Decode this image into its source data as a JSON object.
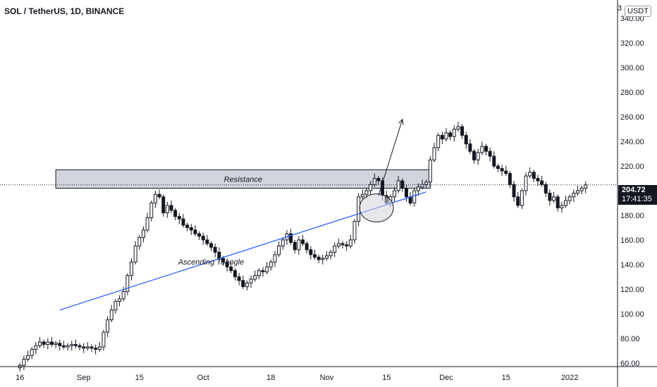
{
  "header": {
    "symbol_title": "SOL / TetherUS, 1D, BINANCE",
    "axis_cut_label": "3",
    "currency": "USDT"
  },
  "price_tag": {
    "last_price": "204.72",
    "countdown": "17:41:35"
  },
  "colors": {
    "candle_up": "#ffffff",
    "candle_down": "#131722",
    "trendline": "#2962ff",
    "resistance_fill": "#d1d4dc",
    "text": "#131722",
    "axis_line": "#131722"
  },
  "annotations": {
    "resistance_label": "Resistance",
    "triangle_label": "Ascending Triangle"
  },
  "chart_data": {
    "type": "candlestick",
    "y_axis": {
      "labels": [
        "340.00",
        "320.00",
        "300.00",
        "280.00",
        "260.00",
        "240.00",
        "220.00",
        "200.00",
        "180.00",
        "160.00",
        "140.00",
        "120.00",
        "100.00",
        "80.00",
        "60.00"
      ],
      "ylim": [
        57,
        355
      ]
    },
    "x_axis": {
      "labels": [
        "16",
        "Sep",
        "15",
        "Oct",
        "18",
        "Nov",
        "15",
        "Dec",
        "15",
        "2022"
      ],
      "label_days": [
        0,
        16,
        30,
        46,
        63,
        77,
        92,
        107,
        122,
        138
      ],
      "xlim": [
        -5,
        150
      ]
    },
    "close_series": [
      58,
      63,
      66,
      71,
      74,
      77,
      75,
      77,
      75,
      76,
      74,
      73,
      74,
      75,
      74,
      73,
      72,
      73,
      72,
      71,
      73,
      85,
      95,
      103,
      110,
      112,
      118,
      131,
      142,
      155,
      162,
      168,
      178,
      190,
      197,
      195,
      182,
      188,
      184,
      179,
      177,
      172,
      170,
      168,
      165,
      163,
      160,
      157,
      154,
      150,
      145,
      142,
      138,
      135,
      130,
      127,
      122,
      125,
      128,
      131,
      135,
      134,
      138,
      142,
      148,
      155,
      160,
      165,
      158,
      152,
      160,
      157,
      152,
      148,
      146,
      144,
      145,
      147,
      150,
      155,
      157,
      156,
      155,
      160,
      175,
      195,
      197,
      200,
      205,
      210,
      208,
      196,
      190,
      195,
      200,
      208,
      202,
      195,
      190,
      200,
      203,
      205,
      207,
      225,
      235,
      245,
      242,
      247,
      244,
      250,
      252,
      245,
      238,
      232,
      225,
      231,
      236,
      232,
      228,
      220,
      218,
      216,
      214,
      205,
      195,
      188,
      200,
      212,
      215,
      210,
      208,
      205,
      198,
      192,
      195,
      186,
      188,
      192,
      195,
      198,
      200,
      202,
      204.72
    ],
    "resistance_zone": {
      "low": 202,
      "high": 217,
      "start_day": 9,
      "end_day": 103
    },
    "trendline": {
      "start_day": 10,
      "start_price": 103,
      "end_day": 102,
      "end_price": 199
    },
    "projection_arrow": {
      "start_day": 90,
      "start_price": 196,
      "end_day": 96,
      "end_price": 258
    },
    "highlight_circle": {
      "day": 89.5,
      "price": 186
    },
    "last_price": 204.72
  }
}
